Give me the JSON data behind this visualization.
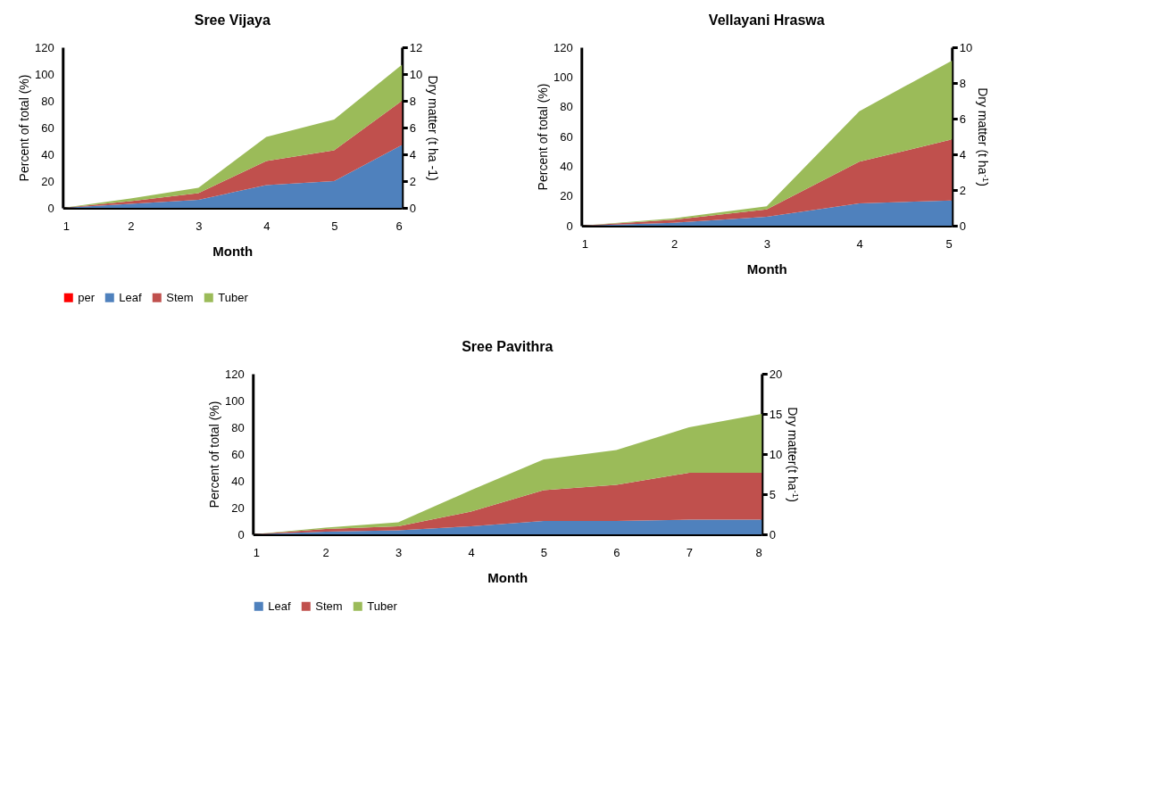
{
  "chart_data": [
    {
      "type": "area",
      "title": "Sree Vijaya",
      "xlabel": "Month",
      "ylabel": "Percent of total (%)",
      "y2label": "Dry matter (t ha -1)",
      "stacked": true,
      "x": [
        1,
        2,
        3,
        4,
        5,
        6
      ],
      "xlim": [
        1,
        6
      ],
      "xticks": [
        1,
        2,
        3,
        4,
        5,
        6
      ],
      "ylim": [
        0,
        120
      ],
      "yticks": [
        0,
        20,
        40,
        60,
        80,
        100,
        120
      ],
      "y2lim": [
        0,
        12
      ],
      "y2ticks": [
        0,
        2,
        4,
        6,
        8,
        10,
        12
      ],
      "grid": false,
      "legend": "bottom",
      "series": [
        {
          "name": "per",
          "color": "#ff0000",
          "values": [
            null,
            null,
            null,
            null,
            null,
            null
          ]
        },
        {
          "name": "Leaf",
          "color": "#4f81bd",
          "values": [
            0,
            3,
            6,
            17,
            20,
            47
          ]
        },
        {
          "name": "Stem",
          "color": "#c0504d",
          "values": [
            0,
            2,
            5,
            18,
            23,
            33
          ]
        },
        {
          "name": "Tuber",
          "color": "#9bbb59",
          "values": [
            0,
            2,
            4,
            18,
            23,
            27
          ]
        }
      ]
    },
    {
      "type": "area",
      "title": "Vellayani Hraswa",
      "xlabel": "Month",
      "ylabel": "Percent of total (%)",
      "y2label": "Dry matter (t ha$^{-1}$)",
      "stacked": true,
      "x": [
        1,
        2,
        3,
        4,
        5
      ],
      "xlim": [
        1,
        5
      ],
      "xticks": [
        1,
        2,
        3,
        4,
        5
      ],
      "ylim": [
        0,
        120
      ],
      "yticks": [
        0,
        20,
        40,
        60,
        80,
        100,
        120
      ],
      "y2lim": [
        0,
        10
      ],
      "y2ticks": [
        0,
        2,
        4,
        6,
        8,
        10
      ],
      "grid": false,
      "legend": "bottom",
      "series": [
        {
          "name": "Leaf",
          "color": "#4f81bd",
          "values": [
            0,
            2,
            6,
            15,
            17
          ]
        },
        {
          "name": "Stem",
          "color": "#c0504d",
          "values": [
            0,
            2,
            5,
            28,
            41
          ]
        },
        {
          "name": "Tuber",
          "color": "#9bbb59",
          "values": [
            0,
            1,
            2,
            34,
            53
          ]
        }
      ]
    },
    {
      "type": "area",
      "title": "Sree Pavithra",
      "xlabel": "Month",
      "ylabel": "Percent of total (%)",
      "y2label": "Dry matter(t ha$^{-1}$)",
      "stacked": true,
      "x": [
        1,
        2,
        3,
        4,
        5,
        6,
        7,
        8
      ],
      "xlim": [
        1,
        8
      ],
      "xticks": [
        1,
        2,
        3,
        4,
        5,
        6,
        7,
        8
      ],
      "ylim": [
        0,
        120
      ],
      "yticks": [
        0,
        20,
        40,
        60,
        80,
        100,
        120
      ],
      "y2lim": [
        0,
        20
      ],
      "y2ticks": [
        0,
        5,
        10,
        15,
        20
      ],
      "grid": false,
      "legend": "bottom",
      "series": [
        {
          "name": "Leaf",
          "color": "#4f81bd",
          "values": [
            0,
            2,
            3,
            6,
            10,
            10,
            11,
            11
          ]
        },
        {
          "name": "Stem",
          "color": "#c0504d",
          "values": [
            0,
            2,
            3,
            11,
            23,
            27,
            35,
            35
          ]
        },
        {
          "name": "Tuber",
          "color": "#9bbb59",
          "values": [
            0,
            1,
            3,
            16,
            23,
            26,
            34,
            44
          ]
        }
      ]
    }
  ]
}
